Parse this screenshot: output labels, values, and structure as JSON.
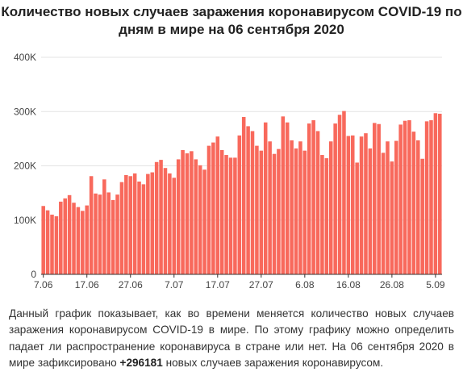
{
  "chart_data": {
    "type": "bar",
    "title_line1": "Количество новых случаев заражения коронавирусом COVID-19 по",
    "title_line2": "дням в мире на 06 сентября 2020",
    "xlabel": "",
    "ylabel": "",
    "ylim": [
      0,
      400000
    ],
    "yticks": [
      0,
      100000,
      200000,
      300000,
      400000
    ],
    "ytick_labels": [
      "0",
      "100K",
      "200K",
      "300K",
      "400K"
    ],
    "xtick_labels": [
      {
        "label": "7.06",
        "index": 0
      },
      {
        "label": "17.06",
        "index": 10
      },
      {
        "label": "27.06",
        "index": 20
      },
      {
        "label": "7.07",
        "index": 30
      },
      {
        "label": "17.07",
        "index": 40
      },
      {
        "label": "27.07",
        "index": 50
      },
      {
        "label": "6.08",
        "index": 60
      },
      {
        "label": "16.08",
        "index": 70
      },
      {
        "label": "26.08",
        "index": 80
      },
      {
        "label": "5.09",
        "index": 90
      }
    ],
    "grid": true,
    "bar_color": "#f8695c",
    "start_date": "2020-06-07",
    "values": [
      126000,
      118000,
      110000,
      107000,
      134000,
      140000,
      146000,
      132000,
      124000,
      117000,
      127000,
      181000,
      149000,
      147000,
      175000,
      151000,
      137000,
      147000,
      170000,
      183000,
      181000,
      186000,
      171000,
      166000,
      185000,
      188000,
      207000,
      211000,
      196000,
      186000,
      178000,
      212000,
      229000,
      223000,
      227000,
      212000,
      201000,
      193000,
      237000,
      243000,
      254000,
      229000,
      220000,
      215000,
      215000,
      256000,
      290000,
      273000,
      264000,
      237000,
      228000,
      280000,
      245000,
      222000,
      231000,
      291000,
      280000,
      247000,
      232000,
      245000,
      228000,
      278000,
      284000,
      264000,
      220000,
      214000,
      245000,
      278000,
      294000,
      301000,
      255000,
      256000,
      206000,
      254000,
      260000,
      232000,
      279000,
      277000,
      224000,
      245000,
      208000,
      246000,
      276000,
      283000,
      284000,
      263000,
      247000,
      213000,
      282000,
      284000,
      297000,
      296000
    ]
  },
  "description": {
    "text_before": "Данный график показывает, как во времени меняется количество новых случаев заражения коронавирусом COVID-19 в мире. По этому графику можно определить падает ли распространение коронавируса в стране или нет. На 06 сентября 2020 в мире зафиксировано ",
    "highlight": "+296181",
    "text_after": " новых случаев заражения коронавирусом."
  }
}
